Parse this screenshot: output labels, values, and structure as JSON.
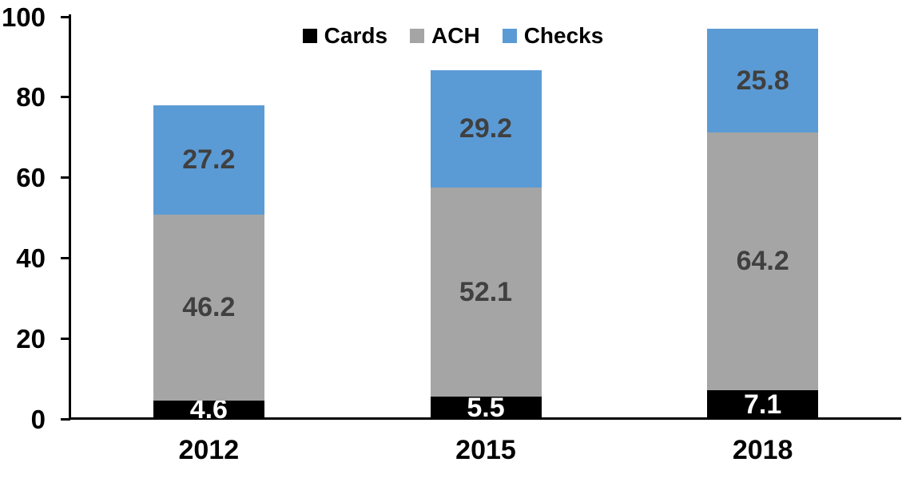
{
  "chart_data": {
    "type": "bar",
    "stacked": true,
    "title": "",
    "xlabel": "",
    "ylabel": "",
    "categories": [
      "2012",
      "2015",
      "2018"
    ],
    "series": [
      {
        "name": "Cards",
        "color": "#000000",
        "label_color": "#FFFFFF",
        "values": [
          4.6,
          5.5,
          7.1
        ]
      },
      {
        "name": "ACH",
        "color": "#A5A5A5",
        "label_color": "#404040",
        "values": [
          46.2,
          52.1,
          64.2
        ]
      },
      {
        "name": "Checks",
        "color": "#5B9BD5",
        "label_color": "#404040",
        "values": [
          27.2,
          29.2,
          25.8
        ]
      }
    ],
    "totals": [
      78.0,
      86.8,
      97.1
    ],
    "ylim": [
      0,
      100
    ],
    "yticks": [
      0,
      20,
      40,
      60,
      80,
      100
    ],
    "grid": false,
    "legend_position": "top-center",
    "axis_color": "#000000",
    "tick_label_color": "#000000"
  }
}
